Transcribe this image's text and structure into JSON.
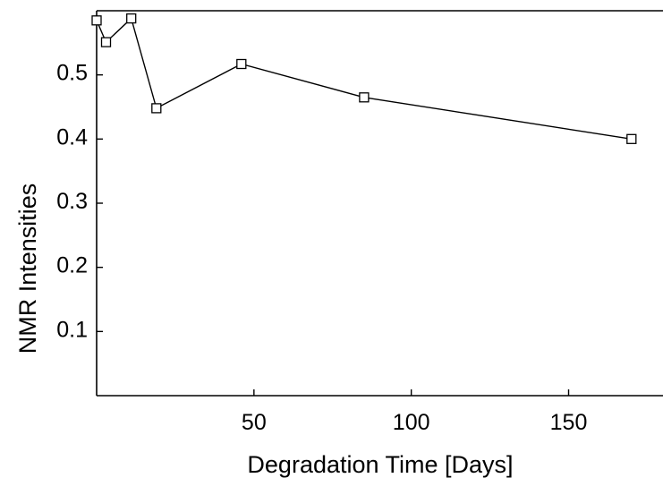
{
  "chart_data": {
    "type": "line",
    "xlabel": "Degradation Time [Days]",
    "ylabel": "NMR Intensities",
    "xlim": [
      0,
      180
    ],
    "ylim": [
      0,
      0.6
    ],
    "x_ticks": [
      50,
      100,
      150
    ],
    "x_tick_labels": [
      "50",
      "100",
      "150"
    ],
    "y_ticks": [
      0.1,
      0.2,
      0.3,
      0.4,
      0.5
    ],
    "y_tick_labels": [
      "0.1",
      "0.2",
      "0.3",
      "0.4",
      "0.5"
    ],
    "grid": false,
    "marker": "open-square",
    "series": [
      {
        "x": [
          0,
          3,
          11,
          19,
          46,
          85,
          170
        ],
        "y": [
          0.585,
          0.551,
          0.588,
          0.448,
          0.517,
          0.465,
          0.4
        ]
      }
    ]
  }
}
